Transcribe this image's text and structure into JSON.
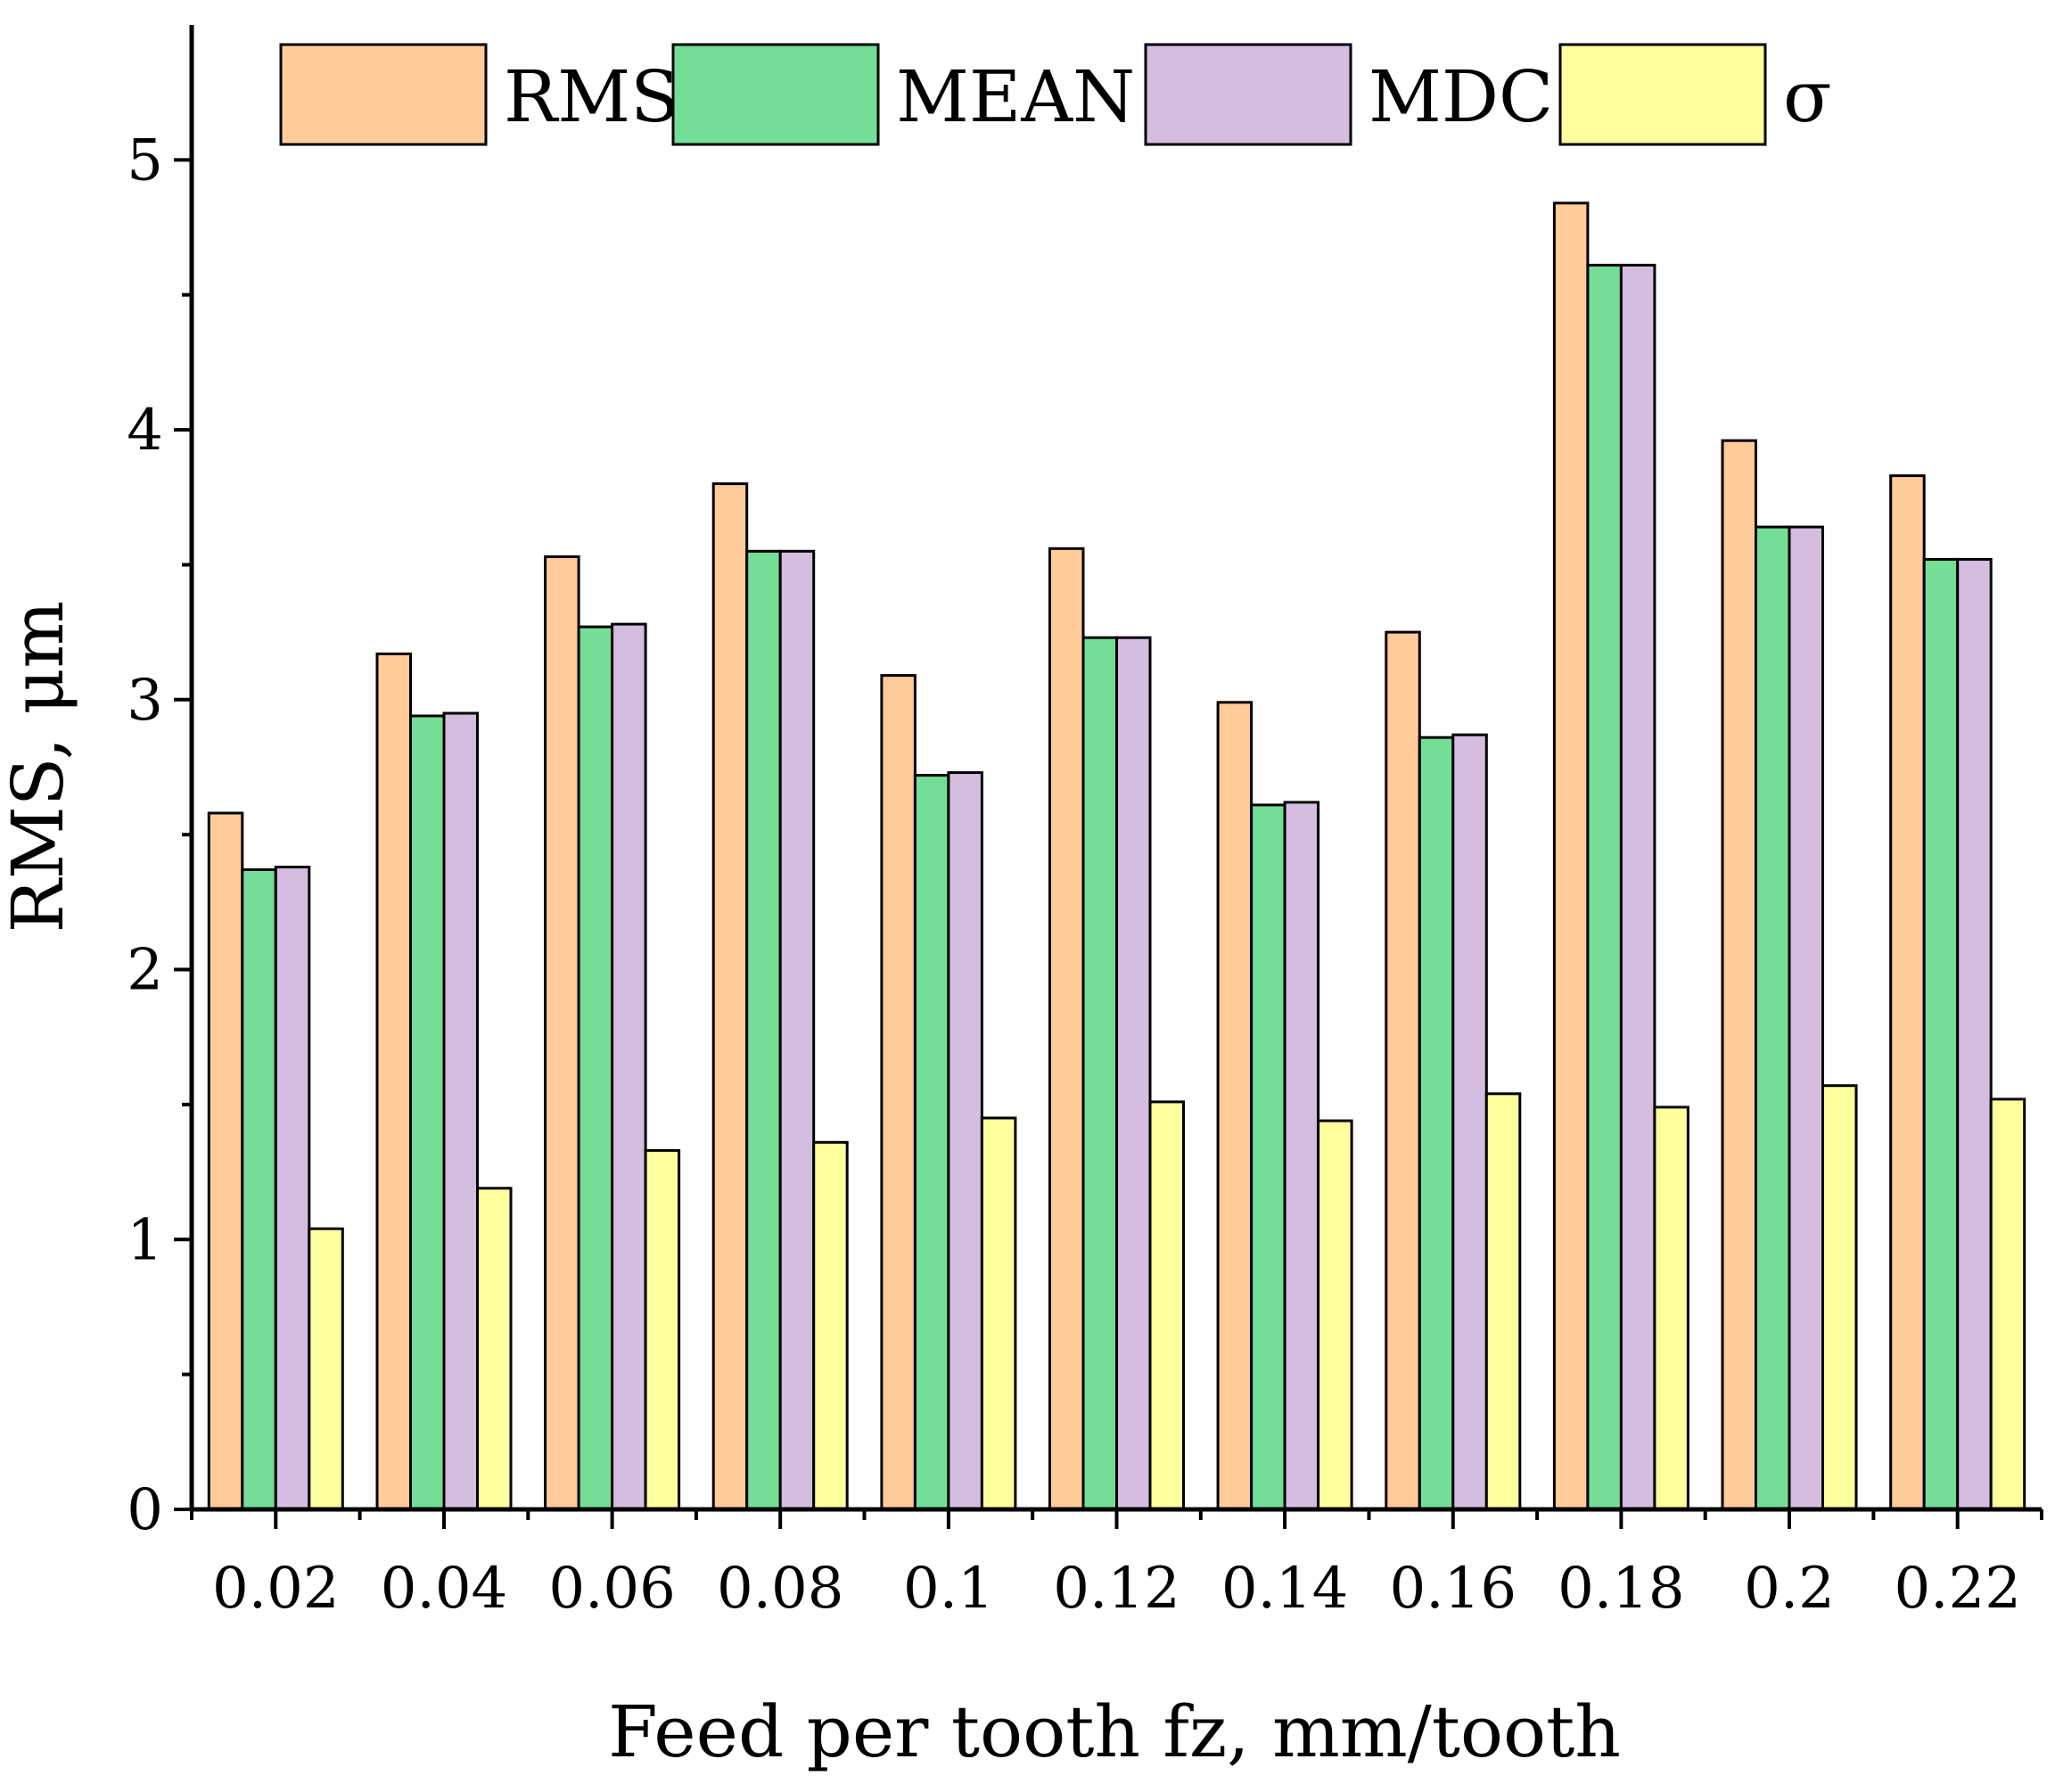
{
  "chart_data": {
    "type": "bar",
    "title": "",
    "xlabel": "Feed per tooth fz, mm/tooth",
    "ylabel": "RMS, μm",
    "ylim": [
      0,
      5.5
    ],
    "yticks": [
      "0",
      "1",
      "2",
      "3",
      "4",
      "5"
    ],
    "grid": false,
    "legend_position": "top",
    "categories": [
      "0.02",
      "0.04",
      "0.06",
      "0.08",
      "0.1",
      "0.12",
      "0.14",
      "0.16",
      "0.18",
      "0.2",
      "0.22"
    ],
    "series": [
      {
        "name": "RMS",
        "color": "#FFCC99",
        "values": [
          2.58,
          3.17,
          3.53,
          3.8,
          3.09,
          3.56,
          2.99,
          3.25,
          4.84,
          3.96,
          3.83
        ]
      },
      {
        "name": "MEAN",
        "color": "#74DE96",
        "values": [
          2.37,
          2.94,
          3.27,
          3.55,
          2.72,
          3.23,
          2.61,
          2.86,
          4.61,
          3.64,
          3.52
        ]
      },
      {
        "name": "MDC",
        "color": "#D5BDE0",
        "values": [
          2.38,
          2.95,
          3.28,
          3.55,
          2.73,
          3.23,
          2.62,
          2.87,
          4.61,
          3.64,
          3.52
        ]
      },
      {
        "name": "σ",
        "color": "#FFFF9E",
        "values": [
          1.04,
          1.19,
          1.33,
          1.36,
          1.45,
          1.51,
          1.44,
          1.54,
          1.49,
          1.57,
          1.52
        ]
      }
    ]
  }
}
